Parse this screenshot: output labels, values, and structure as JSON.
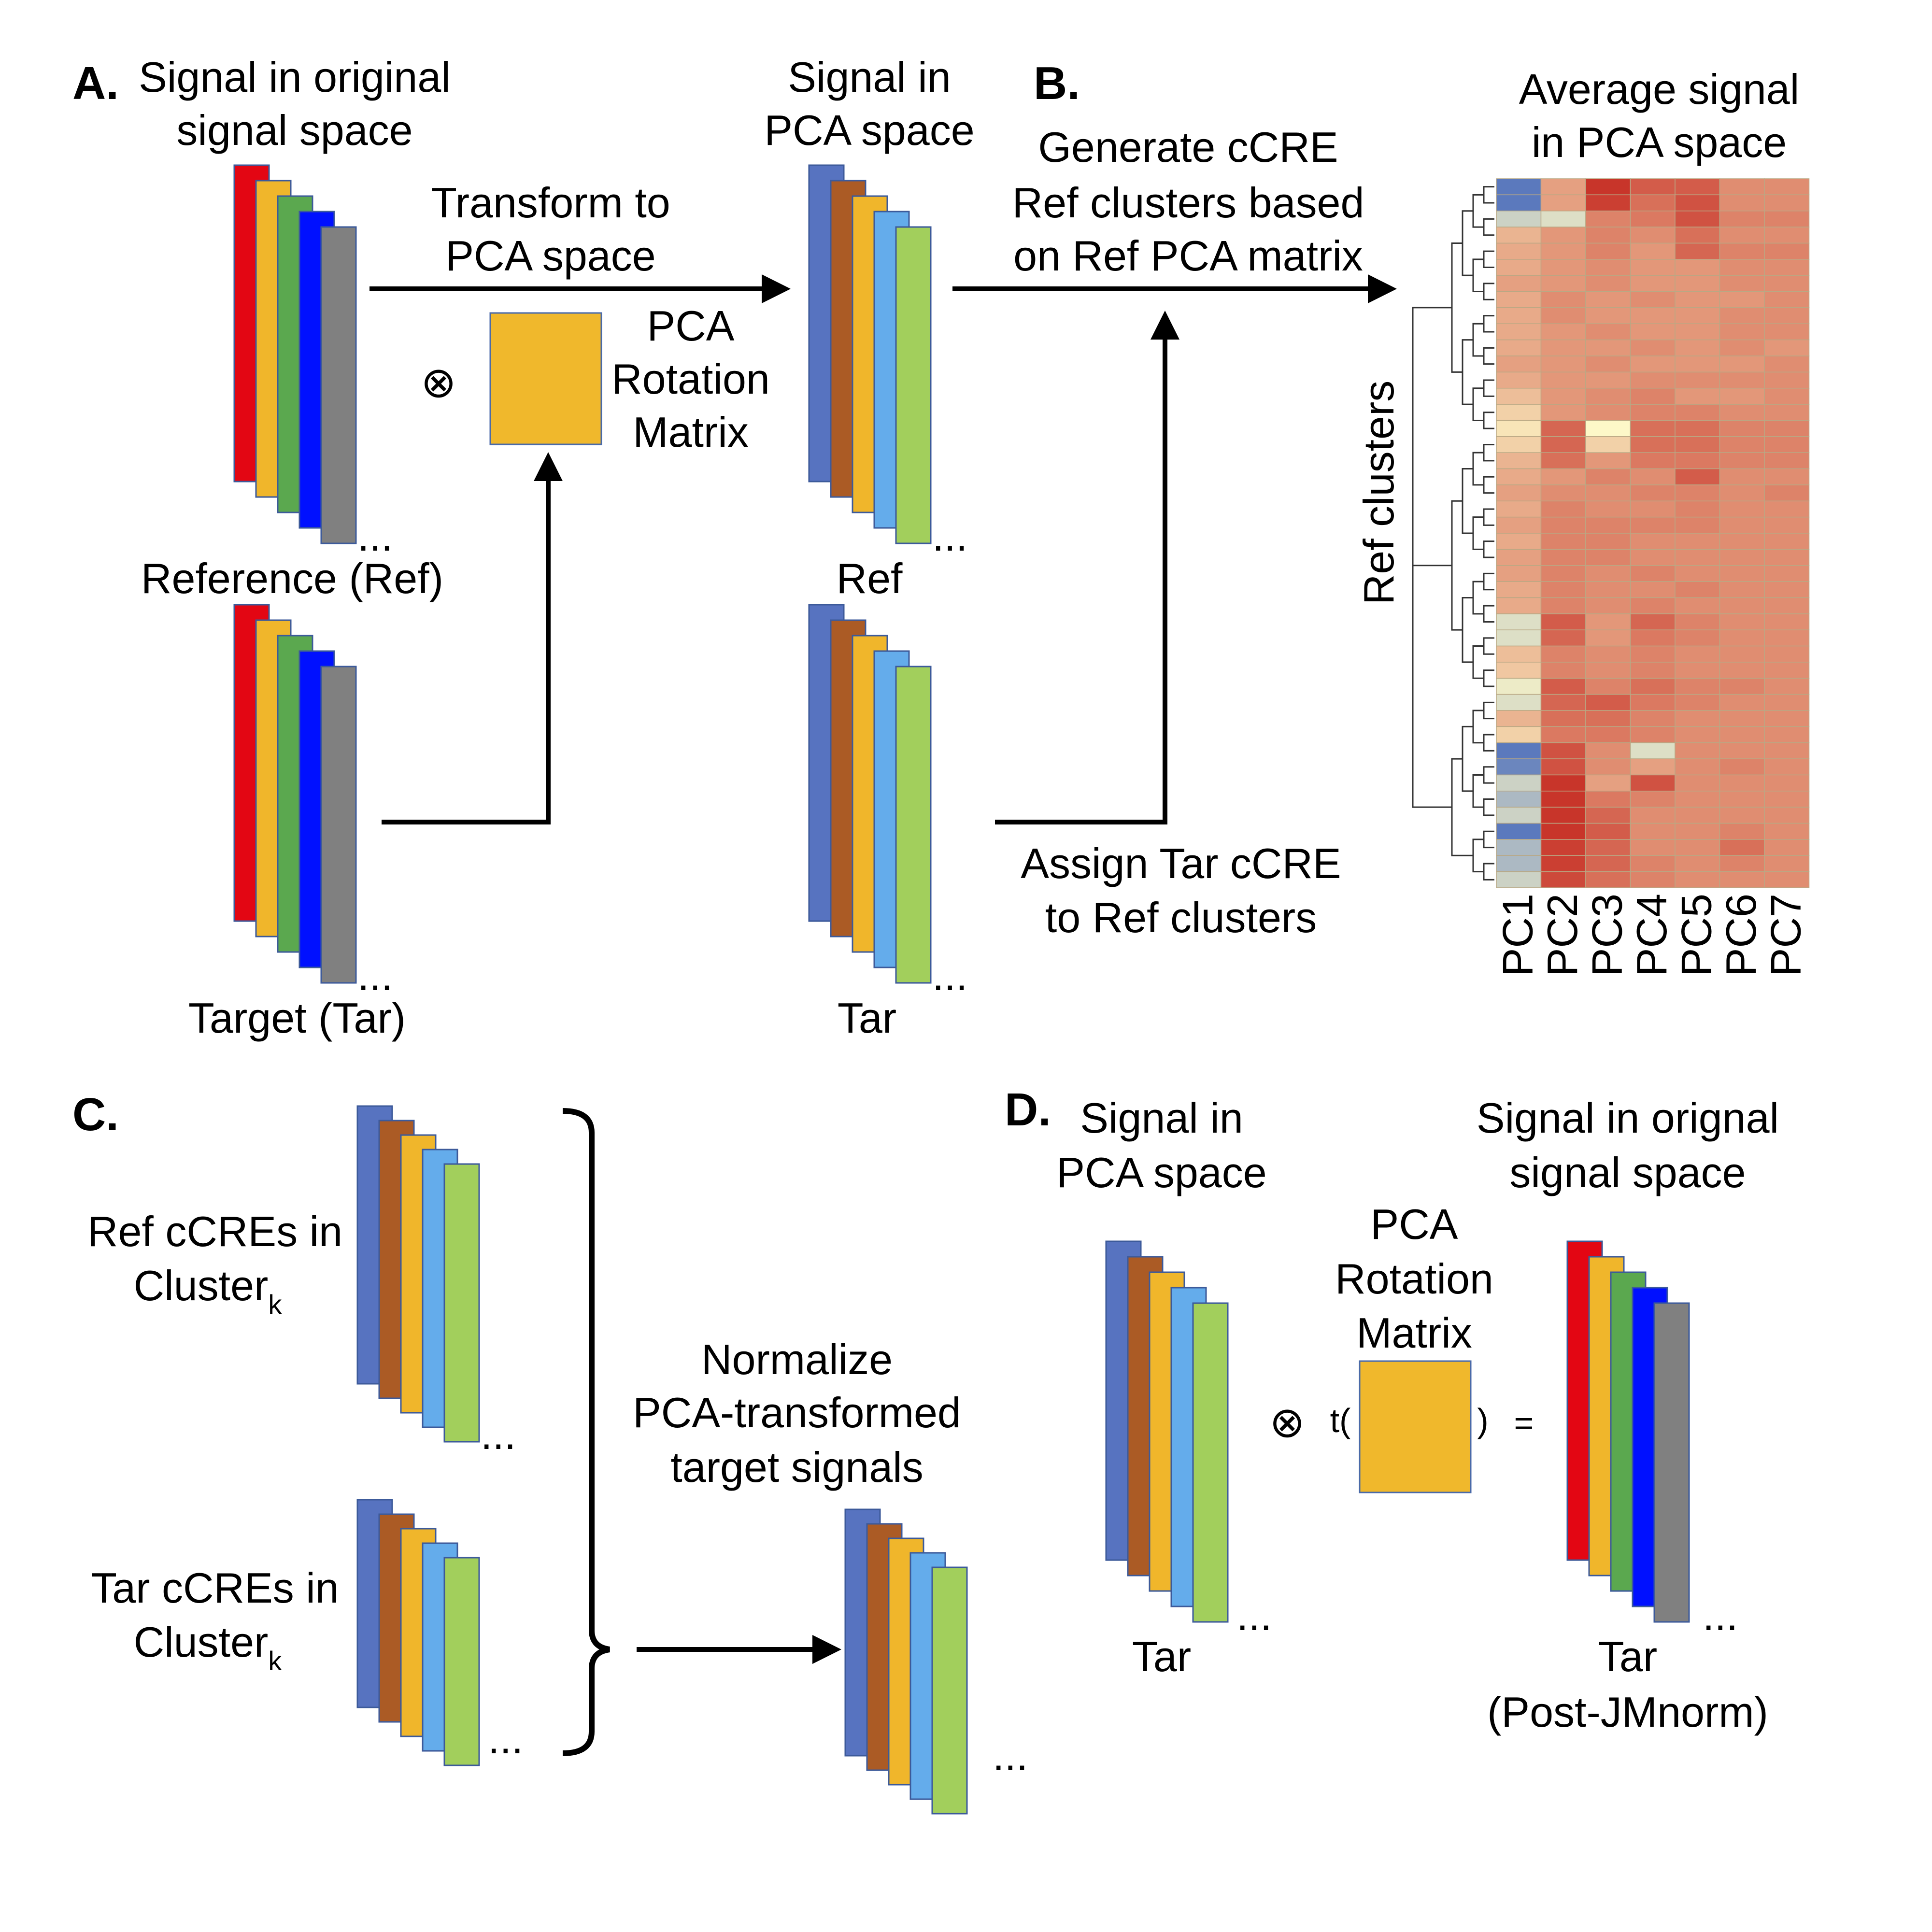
{
  "panels": {
    "A": "A.",
    "B": "B.",
    "C": "C.",
    "D": "D."
  },
  "colors": {
    "signal_stack": [
      "#e30613",
      "#f0b62b",
      "#5ba84f",
      "#0010ff",
      "#808080"
    ],
    "pca_stack": [
      "#5773c0",
      "#ab5b25",
      "#f0b62b",
      "#64aceb",
      "#a2cf5c"
    ],
    "rotation_matrix": "#f0b82c",
    "heatmap_low": "#5b79bd",
    "heatmap_mid": "#fdf8c8",
    "heatmap_high": "#c8352a"
  },
  "panel_a": {
    "title_line1": "Signal in original",
    "title_line2": "signal space",
    "ref_label": "Reference (Ref)",
    "tar_label": "Target (Tar)",
    "arrow_label_line1": "Transform to",
    "arrow_label_line2": "PCA space",
    "otimes": "⊗",
    "matrix_line1": "PCA",
    "matrix_line2": "Rotation",
    "matrix_line3": "Matrix",
    "pca_title_line1": "Signal in",
    "pca_title_line2": "PCA space",
    "pca_ref_label": "Ref",
    "pca_tar_label": "Tar",
    "ellipsis": "..."
  },
  "panel_b": {
    "cluster_label_line1": "Generate cCRE",
    "cluster_label_line2": "Ref clusters based",
    "cluster_label_line3": "on Ref PCA matrix",
    "assign_label_line1": "Assign Tar cCRE",
    "assign_label_line2": "to Ref clusters",
    "heatmap_title_line1": "Average signal",
    "heatmap_title_line2": "in PCA space",
    "y_axis_label": "Ref clusters",
    "columns": [
      "PC1",
      "PC2",
      "PC3",
      "PC4",
      "PC5",
      "PC6",
      "PC7"
    ],
    "rows": [
      [
        -1.0,
        0.45,
        1.0,
        0.8,
        0.8,
        0.55,
        0.55
      ],
      [
        -1.0,
        0.45,
        0.95,
        0.7,
        0.85,
        0.55,
        0.55
      ],
      [
        -0.3,
        -0.2,
        0.6,
        0.65,
        0.85,
        0.6,
        0.6
      ],
      [
        0.35,
        0.5,
        0.6,
        0.55,
        0.7,
        0.55,
        0.55
      ],
      [
        0.4,
        0.5,
        0.6,
        0.5,
        0.75,
        0.6,
        0.6
      ],
      [
        0.4,
        0.5,
        0.55,
        0.5,
        0.5,
        0.55,
        0.55
      ],
      [
        0.45,
        0.5,
        0.55,
        0.5,
        0.5,
        0.55,
        0.55
      ],
      [
        0.4,
        0.55,
        0.5,
        0.55,
        0.5,
        0.5,
        0.55
      ],
      [
        0.4,
        0.55,
        0.5,
        0.5,
        0.5,
        0.55,
        0.55
      ],
      [
        0.4,
        0.5,
        0.55,
        0.5,
        0.5,
        0.55,
        0.55
      ],
      [
        0.4,
        0.5,
        0.5,
        0.55,
        0.5,
        0.55,
        0.5
      ],
      [
        0.45,
        0.5,
        0.55,
        0.5,
        0.5,
        0.5,
        0.55
      ],
      [
        0.4,
        0.5,
        0.5,
        0.55,
        0.55,
        0.55,
        0.55
      ],
      [
        0.3,
        0.5,
        0.55,
        0.6,
        0.5,
        0.5,
        0.55
      ],
      [
        0.2,
        0.5,
        0.55,
        0.6,
        0.6,
        0.55,
        0.55
      ],
      [
        0.1,
        0.75,
        0.0,
        0.7,
        0.7,
        0.6,
        0.6
      ],
      [
        0.2,
        0.75,
        0.2,
        0.7,
        0.7,
        0.6,
        0.6
      ],
      [
        0.35,
        0.7,
        0.5,
        0.65,
        0.65,
        0.6,
        0.6
      ],
      [
        0.4,
        0.5,
        0.6,
        0.55,
        0.8,
        0.55,
        0.55
      ],
      [
        0.45,
        0.55,
        0.55,
        0.6,
        0.6,
        0.55,
        0.6
      ],
      [
        0.4,
        0.6,
        0.55,
        0.55,
        0.6,
        0.55,
        0.55
      ],
      [
        0.45,
        0.6,
        0.6,
        0.6,
        0.6,
        0.55,
        0.55
      ],
      [
        0.4,
        0.6,
        0.6,
        0.55,
        0.55,
        0.55,
        0.55
      ],
      [
        0.45,
        0.6,
        0.6,
        0.55,
        0.55,
        0.55,
        0.55
      ],
      [
        0.45,
        0.6,
        0.55,
        0.6,
        0.55,
        0.55,
        0.55
      ],
      [
        0.4,
        0.6,
        0.55,
        0.55,
        0.6,
        0.55,
        0.55
      ],
      [
        0.4,
        0.6,
        0.55,
        0.6,
        0.55,
        0.55,
        0.55
      ],
      [
        -0.2,
        0.8,
        0.5,
        0.75,
        0.6,
        0.55,
        0.55
      ],
      [
        -0.2,
        0.75,
        0.5,
        0.65,
        0.6,
        0.55,
        0.55
      ],
      [
        0.3,
        0.6,
        0.55,
        0.6,
        0.55,
        0.55,
        0.55
      ],
      [
        0.25,
        0.6,
        0.55,
        0.6,
        0.55,
        0.55,
        0.55
      ],
      [
        -0.1,
        0.8,
        0.6,
        0.7,
        0.6,
        0.6,
        0.55
      ],
      [
        -0.2,
        0.75,
        0.8,
        0.65,
        0.6,
        0.55,
        0.55
      ],
      [
        0.35,
        0.7,
        0.7,
        0.6,
        0.55,
        0.55,
        0.55
      ],
      [
        0.2,
        0.65,
        0.65,
        0.6,
        0.55,
        0.55,
        0.55
      ],
      [
        -1.0,
        0.85,
        0.55,
        -0.2,
        0.55,
        0.55,
        0.55
      ],
      [
        -0.9,
        0.85,
        0.55,
        0.45,
        0.55,
        0.6,
        0.55
      ],
      [
        -0.3,
        1.0,
        0.45,
        0.85,
        0.55,
        0.55,
        0.55
      ],
      [
        -0.5,
        1.0,
        0.65,
        0.6,
        0.55,
        0.55,
        0.55
      ],
      [
        -0.3,
        1.0,
        0.75,
        0.55,
        0.55,
        0.55,
        0.55
      ],
      [
        -1.0,
        1.0,
        0.8,
        0.55,
        0.55,
        0.6,
        0.55
      ],
      [
        -0.5,
        0.95,
        0.75,
        0.55,
        0.55,
        0.7,
        0.55
      ],
      [
        -0.5,
        0.95,
        0.75,
        0.6,
        0.55,
        0.6,
        0.55
      ],
      [
        -0.3,
        0.9,
        0.7,
        0.6,
        0.55,
        0.55,
        0.55
      ]
    ]
  },
  "panel_c": {
    "ref_line1": "Ref cCREs in",
    "ref_line2": "Cluster",
    "tar_line1": "Tar cCREs in",
    "tar_line2": "Cluster",
    "subscript": "k",
    "normalize_line1": "Normalize",
    "normalize_line2": "PCA-transformed",
    "normalize_line3": "target signals",
    "ellipsis": "..."
  },
  "panel_d": {
    "pca_title_line1": "Signal in",
    "pca_title_line2": "PCA space",
    "orig_title_line1": "Signal in orignal",
    "orig_title_line2": "signal space",
    "matrix_line1": "PCA",
    "matrix_line2": "Rotation",
    "matrix_line3": "Matrix",
    "otimes": "⊗",
    "transpose_open": "t(",
    "transpose_close": ")",
    "equals": "=",
    "tar_label": "Tar",
    "post_label_line1": "Tar",
    "post_label_line2": "(Post-JMnorm)",
    "ellipsis": "..."
  }
}
